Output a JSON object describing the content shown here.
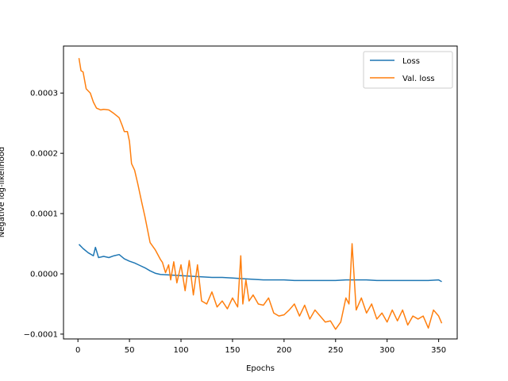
{
  "chart_data": {
    "type": "line",
    "xlabel": "Epochs",
    "ylabel": "Negative log-likelihood",
    "xlim": [
      -14,
      368
    ],
    "ylim": [
      -0.000108,
      0.000378
    ],
    "xticks": [
      0,
      50,
      100,
      150,
      200,
      250,
      300,
      350
    ],
    "xtick_labels": [
      "0",
      "50",
      "100",
      "150",
      "200",
      "250",
      "300",
      "350"
    ],
    "yticks": [
      -0.0001,
      0.0,
      0.0001,
      0.0002,
      0.0003
    ],
    "ytick_labels": [
      "−0.0001",
      "0.0000",
      "0.0001",
      "0.0002",
      "0.0003"
    ],
    "grid": false,
    "legend_position": "top-right",
    "series": [
      {
        "name": "Loss",
        "color": "#1f77b4",
        "x": [
          1,
          5,
          10,
          15,
          17,
          20,
          25,
          30,
          35,
          40,
          45,
          50,
          55,
          60,
          65,
          70,
          75,
          80,
          90,
          100,
          110,
          120,
          130,
          140,
          150,
          160,
          170,
          180,
          190,
          200,
          210,
          220,
          230,
          240,
          250,
          260,
          270,
          280,
          290,
          300,
          310,
          320,
          330,
          340,
          350,
          353
        ],
        "y": [
          4.9e-05,
          4.2e-05,
          3.5e-05,
          3e-05,
          4.4e-05,
          2.7e-05,
          2.9e-05,
          2.7e-05,
          3e-05,
          3.2e-05,
          2.5e-05,
          2.1e-05,
          1.8e-05,
          1.4e-05,
          1e-05,
          5e-06,
          1e-06,
          -1e-06,
          -2e-06,
          -3e-06,
          -4e-06,
          -5e-06,
          -6e-06,
          -6e-06,
          -7e-06,
          -8e-06,
          -9e-06,
          -1e-05,
          -1e-05,
          -1e-05,
          -1.1e-05,
          -1.1e-05,
          -1.1e-05,
          -1.1e-05,
          -1.1e-05,
          -1e-05,
          -1e-05,
          -1e-05,
          -1.1e-05,
          -1.1e-05,
          -1.1e-05,
          -1.1e-05,
          -1.1e-05,
          -1.1e-05,
          -1e-05,
          -1.3e-05
        ]
      },
      {
        "name": "Val. loss",
        "color": "#ff7f0e",
        "x": [
          1,
          3,
          5,
          8,
          12,
          15,
          18,
          22,
          25,
          30,
          35,
          40,
          43,
          45,
          48,
          50,
          52,
          55,
          58,
          62,
          65,
          70,
          75,
          80,
          82,
          85,
          88,
          90,
          93,
          96,
          100,
          104,
          108,
          112,
          116,
          120,
          125,
          130,
          135,
          140,
          145,
          150,
          155,
          158,
          160,
          163,
          166,
          170,
          175,
          180,
          185,
          190,
          195,
          200,
          205,
          210,
          215,
          220,
          225,
          230,
          235,
          240,
          245,
          250,
          255,
          260,
          263,
          266,
          270,
          275,
          280,
          285,
          290,
          295,
          300,
          305,
          310,
          315,
          320,
          325,
          330,
          335,
          340,
          345,
          350,
          353
        ],
        "y": [
          0.000358,
          0.000337,
          0.000335,
          0.000307,
          0.0003,
          0.000285,
          0.000275,
          0.000272,
          0.000273,
          0.000272,
          0.000266,
          0.000259,
          0.000246,
          0.000236,
          0.000236,
          0.00022,
          0.000183,
          0.000172,
          0.00015,
          0.000118,
          9.5e-05,
          5.2e-05,
          4e-05,
          2.4e-05,
          1.9e-05,
          2e-06,
          1.5e-05,
          -1e-05,
          2e-05,
          -1.5e-05,
          1.5e-05,
          -2.8e-05,
          2.2e-05,
          -3.5e-05,
          1.5e-05,
          -4.5e-05,
          -5e-05,
          -3e-05,
          -5.5e-05,
          -4.5e-05,
          -5.8e-05,
          -4e-05,
          -5.5e-05,
          3e-05,
          -5e-05,
          -1e-05,
          -4.5e-05,
          -3.5e-05,
          -5e-05,
          -5.2e-05,
          -4e-05,
          -6.5e-05,
          -7e-05,
          -6.8e-05,
          -6e-05,
          -5e-05,
          -7e-05,
          -5.2e-05,
          -7.5e-05,
          -6e-05,
          -7e-05,
          -8e-05,
          -7.8e-05,
          -9.2e-05,
          -8e-05,
          -4e-05,
          -5e-05,
          5e-05,
          -6e-05,
          -4e-05,
          -6.5e-05,
          -5e-05,
          -7.5e-05,
          -6.5e-05,
          -8e-05,
          -6e-05,
          -7.8e-05,
          -6e-05,
          -8.5e-05,
          -7e-05,
          -7.5e-05,
          -7e-05,
          -9e-05,
          -6e-05,
          -7e-05,
          -8.2e-05
        ]
      }
    ]
  }
}
